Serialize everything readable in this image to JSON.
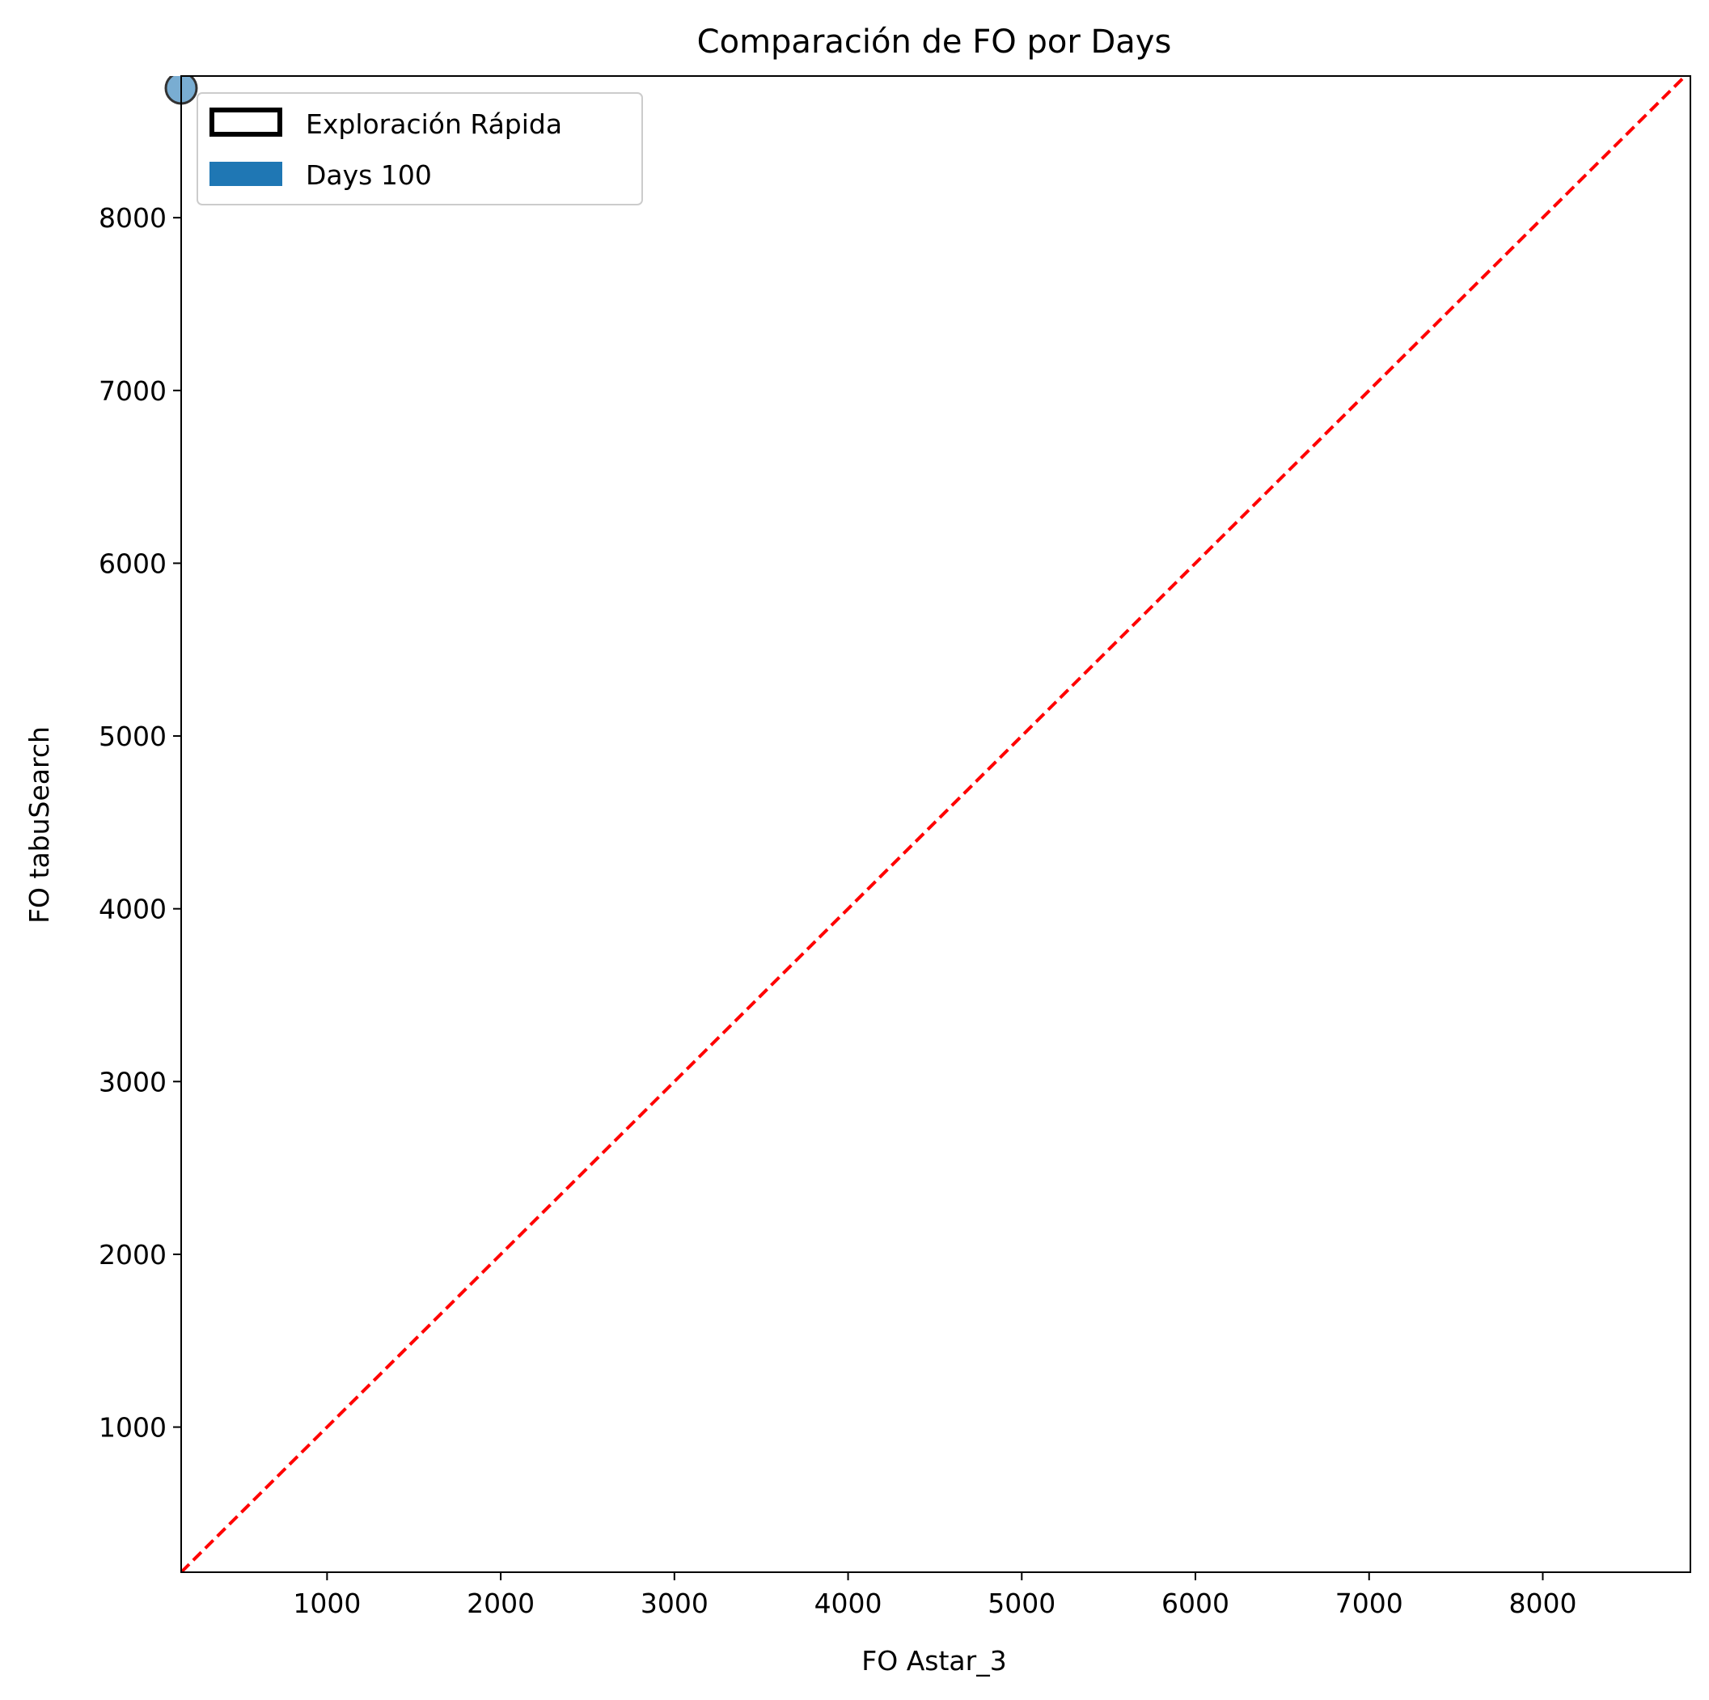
{
  "chart_data": {
    "type": "scatter",
    "title": "Comparación de FO por Days",
    "xlabel": "FO Astar_3",
    "ylabel": "FO tabuSearch",
    "xlim": [
      160,
      8850
    ],
    "ylim": [
      160,
      8820
    ],
    "xticks": [
      1000,
      2000,
      3000,
      4000,
      5000,
      6000,
      7000,
      8000
    ],
    "yticks": [
      1000,
      2000,
      3000,
      4000,
      5000,
      6000,
      7000,
      8000
    ],
    "grid": false,
    "legend": {
      "placement": "top-left",
      "entries": [
        {
          "label": "Exploración Rápida",
          "style": "outline",
          "color": "#000000"
        },
        {
          "label": "Days 100",
          "style": "filled",
          "color": "#1f77b4"
        }
      ]
    },
    "reference_line": {
      "style": "dashed",
      "color": "#ff0000",
      "from": [
        160,
        160
      ],
      "to": [
        8850,
        8850
      ]
    },
    "series": [
      {
        "name": "Days 100",
        "color": "#1f77b4",
        "points": [
          {
            "x": 160,
            "y": 8750
          }
        ]
      }
    ]
  }
}
